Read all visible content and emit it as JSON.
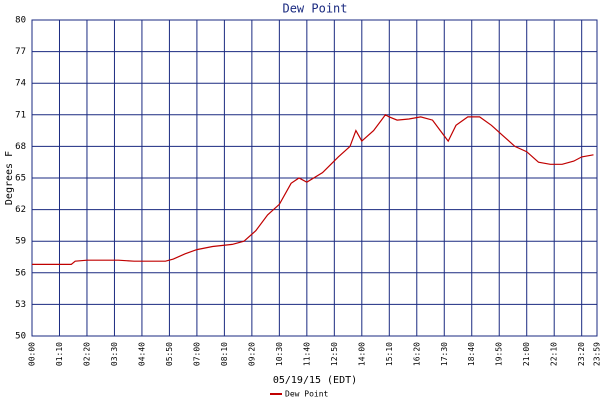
{
  "chart_data": {
    "type": "line",
    "title": "Dew Point",
    "x_label": "05/19/15 (EDT)",
    "y_label": "Degrees F",
    "x": [
      "00:00",
      "00:30",
      "01:00",
      "01:40",
      "01:50",
      "02:20",
      "03:00",
      "03:40",
      "04:20",
      "05:00",
      "05:40",
      "06:00",
      "06:30",
      "07:00",
      "07:40",
      "08:30",
      "09:00",
      "09:30",
      "10:00",
      "10:30",
      "11:00",
      "11:20",
      "11:40",
      "12:20",
      "13:00",
      "13:30",
      "13:45",
      "14:00",
      "14:30",
      "15:00",
      "15:10",
      "15:30",
      "16:00",
      "16:30",
      "17:00",
      "17:20",
      "17:40",
      "18:00",
      "18:30",
      "19:00",
      "19:30",
      "20:00",
      "20:30",
      "21:00",
      "21:30",
      "22:00",
      "22:30",
      "23:00",
      "23:20",
      "23:50"
    ],
    "series": [
      {
        "name": "Dew Point",
        "color": "#c00000",
        "values": [
          56.8,
          56.8,
          56.8,
          56.8,
          57.1,
          57.2,
          57.2,
          57.2,
          57.1,
          57.1,
          57.1,
          57.3,
          57.8,
          58.2,
          58.5,
          58.7,
          59.0,
          60.0,
          61.5,
          62.5,
          64.5,
          65.0,
          64.6,
          65.5,
          67.0,
          68.0,
          69.5,
          68.5,
          69.5,
          71.0,
          70.8,
          70.5,
          70.6,
          70.8,
          70.5,
          69.5,
          68.5,
          70.0,
          70.8,
          70.8,
          70.0,
          69.0,
          68.0,
          67.5,
          66.5,
          66.3,
          66.3,
          66.6,
          67.0,
          67.2
        ]
      }
    ],
    "xlim": [
      "00:00",
      "23:59"
    ],
    "xticks": [
      "00:00",
      "01:10",
      "02:20",
      "03:30",
      "04:40",
      "05:50",
      "07:00",
      "08:10",
      "09:20",
      "10:30",
      "11:40",
      "12:50",
      "14:00",
      "15:10",
      "16:20",
      "17:30",
      "18:40",
      "19:50",
      "21:00",
      "22:10",
      "23:20",
      "23:59"
    ],
    "ylim": [
      50,
      80
    ],
    "yticks": [
      50,
      53,
      56,
      59,
      62,
      65,
      68,
      71,
      74,
      77,
      80
    ],
    "grid": true
  }
}
